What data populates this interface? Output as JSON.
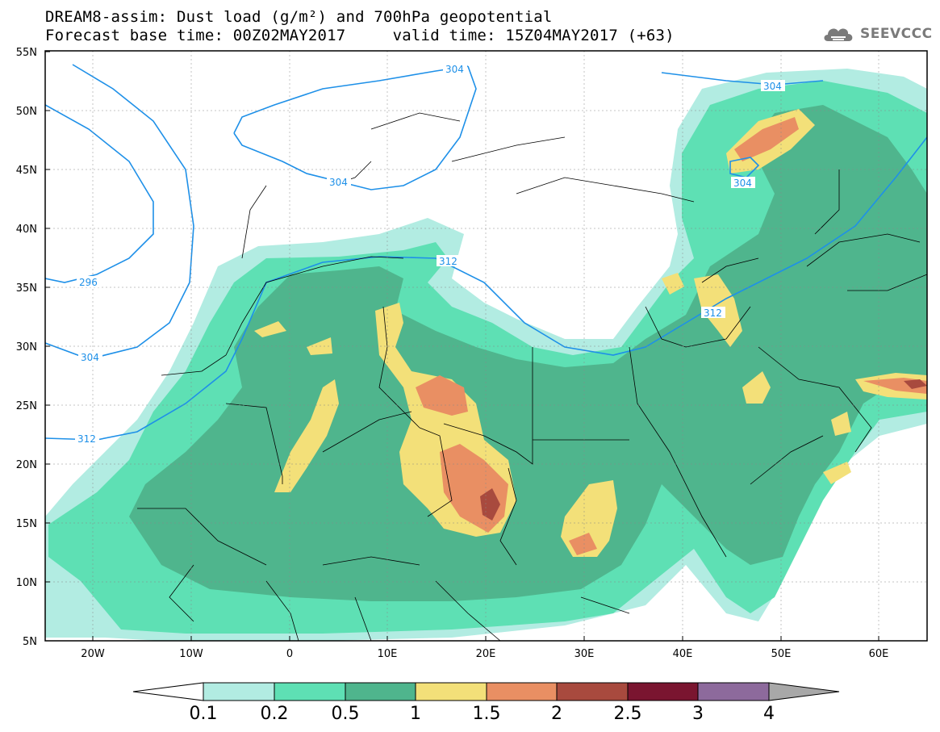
{
  "header": {
    "title_line1": "DREAM8-assim: Dust load (g/m²) and 700hPa geopotential",
    "title_line2": "Forecast base time: 00Z02MAY2017     valid time: 15Z04MAY2017 (+63)",
    "logo_text": "SEEVCCC"
  },
  "map": {
    "lat_labels": [
      "55N",
      "50N",
      "45N",
      "40N",
      "35N",
      "30N",
      "25N",
      "20N",
      "15N",
      "10N",
      "5N"
    ],
    "lon_labels": [
      "20W",
      "10W",
      "0",
      "10E",
      "20E",
      "30E",
      "40E",
      "50E",
      "60E"
    ],
    "contour_labels": [
      "304",
      "304",
      "304",
      "304",
      "296",
      "304",
      "312",
      "312",
      "312"
    ],
    "colors": {
      "ocean": "#ffffff",
      "contour": "#1e90e8",
      "border": "#000000"
    }
  },
  "colorbar": {
    "levels": [
      "0.1",
      "0.2",
      "0.5",
      "1",
      "1.5",
      "2",
      "2.5",
      "3",
      "4"
    ],
    "colors": [
      "#ffffff",
      "#b2ece2",
      "#5ee0b4",
      "#4fb58d",
      "#f3e079",
      "#e98f63",
      "#a84a3e",
      "#7a1530",
      "#8d6a9c",
      "#a8a8a8"
    ]
  }
}
